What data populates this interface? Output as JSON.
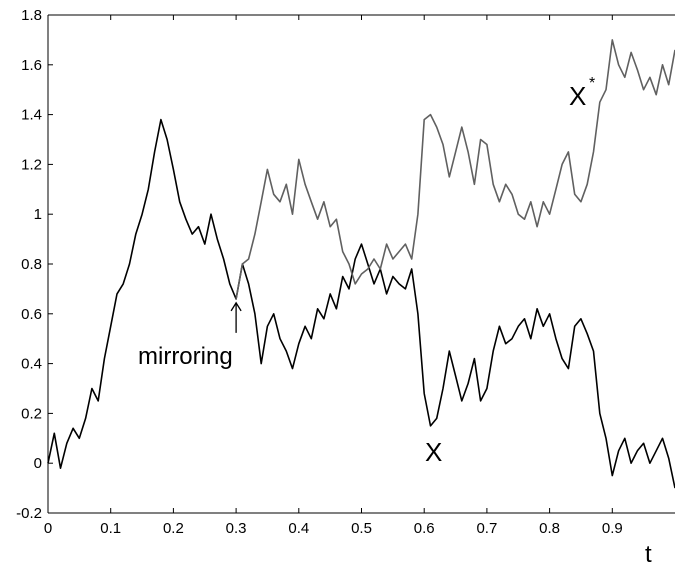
{
  "chart_data": {
    "type": "line",
    "title": "",
    "xlabel": "t",
    "ylabel": "",
    "xlim": [
      0,
      1
    ],
    "ylim": [
      -0.2,
      1.8
    ],
    "grid": false,
    "x_ticks": [
      0,
      0.1,
      0.2,
      0.3,
      0.4,
      0.5,
      0.6,
      0.7,
      0.8,
      0.9
    ],
    "x_tick_labels": [
      "0",
      "0.1",
      "0.2",
      "0.3",
      "0.4",
      "0.5",
      "0.6",
      "0.7",
      "0.8",
      "0.9"
    ],
    "y_ticks": [
      -0.2,
      0,
      0.2,
      0.4,
      0.6,
      0.8,
      1,
      1.2,
      1.4,
      1.6,
      1.8
    ],
    "y_tick_labels": [
      "-0.2",
      "0",
      "0.2",
      "0.4",
      "0.6",
      "0.8",
      "1",
      "1.2",
      "1.4",
      "1.6",
      "1.8"
    ],
    "annotations": {
      "mirroring": "mirroring",
      "x_label": "X",
      "xstar_label": "X",
      "xstar_superscript": "*",
      "arrow_target": [
        0.3,
        0.66
      ]
    },
    "series": [
      {
        "name": "X",
        "color": "#000000",
        "x": [
          0,
          0.01,
          0.02,
          0.03,
          0.04,
          0.05,
          0.06,
          0.07,
          0.08,
          0.09,
          0.1,
          0.11,
          0.12,
          0.13,
          0.14,
          0.15,
          0.16,
          0.17,
          0.18,
          0.19,
          0.2,
          0.21,
          0.22,
          0.23,
          0.24,
          0.25,
          0.26,
          0.27,
          0.28,
          0.29,
          0.3,
          0.31,
          0.32,
          0.33,
          0.34,
          0.35,
          0.36,
          0.37,
          0.38,
          0.39,
          0.4,
          0.41,
          0.42,
          0.43,
          0.44,
          0.45,
          0.46,
          0.47,
          0.48,
          0.49,
          0.5,
          0.51,
          0.52,
          0.53,
          0.54,
          0.55,
          0.56,
          0.57,
          0.58,
          0.59,
          0.6,
          0.61,
          0.62,
          0.63,
          0.64,
          0.65,
          0.66,
          0.67,
          0.68,
          0.69,
          0.7,
          0.71,
          0.72,
          0.73,
          0.74,
          0.75,
          0.76,
          0.77,
          0.78,
          0.79,
          0.8,
          0.81,
          0.82,
          0.83,
          0.84,
          0.85,
          0.86,
          0.87,
          0.88,
          0.89,
          0.9,
          0.91,
          0.92,
          0.93,
          0.94,
          0.95,
          0.96,
          0.97,
          0.98,
          0.99,
          1.0
        ],
        "y": [
          0.0,
          0.12,
          -0.02,
          0.08,
          0.14,
          0.1,
          0.18,
          0.3,
          0.25,
          0.42,
          0.55,
          0.68,
          0.72,
          0.8,
          0.92,
          1.0,
          1.1,
          1.25,
          1.38,
          1.3,
          1.18,
          1.05,
          0.98,
          0.92,
          0.95,
          0.88,
          1.0,
          0.9,
          0.82,
          0.72,
          0.66,
          0.8,
          0.72,
          0.6,
          0.4,
          0.55,
          0.6,
          0.5,
          0.45,
          0.38,
          0.48,
          0.55,
          0.5,
          0.62,
          0.58,
          0.68,
          0.62,
          0.75,
          0.7,
          0.82,
          0.88,
          0.8,
          0.72,
          0.78,
          0.68,
          0.75,
          0.72,
          0.7,
          0.78,
          0.6,
          0.28,
          0.15,
          0.18,
          0.3,
          0.45,
          0.35,
          0.25,
          0.32,
          0.42,
          0.25,
          0.3,
          0.45,
          0.55,
          0.48,
          0.5,
          0.55,
          0.58,
          0.5,
          0.62,
          0.55,
          0.6,
          0.5,
          0.42,
          0.38,
          0.55,
          0.58,
          0.52,
          0.45,
          0.2,
          0.1,
          -0.05,
          0.05,
          0.1,
          0.0,
          0.05,
          0.08,
          0.0,
          0.05,
          0.1,
          0.02,
          -0.1
        ]
      },
      {
        "name": "X*",
        "color": "#606060",
        "x": [
          0.3,
          0.31,
          0.32,
          0.33,
          0.34,
          0.35,
          0.36,
          0.37,
          0.38,
          0.39,
          0.4,
          0.41,
          0.42,
          0.43,
          0.44,
          0.45,
          0.46,
          0.47,
          0.48,
          0.49,
          0.5,
          0.51,
          0.52,
          0.53,
          0.54,
          0.55,
          0.56,
          0.57,
          0.58,
          0.59,
          0.6,
          0.61,
          0.62,
          0.63,
          0.64,
          0.65,
          0.66,
          0.67,
          0.68,
          0.69,
          0.7,
          0.71,
          0.72,
          0.73,
          0.74,
          0.75,
          0.76,
          0.77,
          0.78,
          0.79,
          0.8,
          0.81,
          0.82,
          0.83,
          0.84,
          0.85,
          0.86,
          0.87,
          0.88,
          0.89,
          0.9,
          0.91,
          0.92,
          0.93,
          0.94,
          0.95,
          0.96,
          0.97,
          0.98,
          0.99,
          1.0
        ],
        "y": [
          0.66,
          0.8,
          0.82,
          0.92,
          1.05,
          1.18,
          1.08,
          1.05,
          1.12,
          1.0,
          1.22,
          1.12,
          1.05,
          0.98,
          1.05,
          0.95,
          0.98,
          0.85,
          0.8,
          0.72,
          0.76,
          0.78,
          0.82,
          0.78,
          0.88,
          0.82,
          0.85,
          0.88,
          0.82,
          1.0,
          1.38,
          1.4,
          1.35,
          1.28,
          1.15,
          1.25,
          1.35,
          1.25,
          1.12,
          1.3,
          1.28,
          1.12,
          1.05,
          1.12,
          1.08,
          1.0,
          0.98,
          1.05,
          0.95,
          1.05,
          1.0,
          1.1,
          1.2,
          1.25,
          1.08,
          1.05,
          1.12,
          1.25,
          1.45,
          1.5,
          1.7,
          1.6,
          1.55,
          1.65,
          1.58,
          1.5,
          1.55,
          1.48,
          1.6,
          1.52,
          1.66
        ]
      }
    ]
  }
}
